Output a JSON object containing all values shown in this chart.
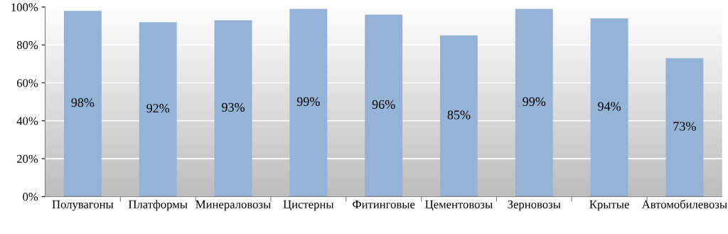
{
  "chart_data": {
    "type": "bar",
    "categories": [
      "Полувагоны",
      "Платформы",
      "Минераловозы",
      "Цистерны",
      "Фитинговые",
      "Цементовозы",
      "Зерновозы",
      "Крытые",
      "Автомобилевозы"
    ],
    "values": [
      98,
      92,
      93,
      99,
      96,
      85,
      99,
      94,
      73
    ],
    "value_labels": [
      "98%",
      "92%",
      "93%",
      "99%",
      "96%",
      "85%",
      "99%",
      "94%",
      "73%"
    ],
    "color": "#95b3d7",
    "ylim": [
      0,
      100
    ],
    "yticks": [
      {
        "value": 0,
        "label": "0%"
      },
      {
        "value": 20,
        "label": "20%"
      },
      {
        "value": 40,
        "label": "40%"
      },
      {
        "value": 60,
        "label": "60%"
      },
      {
        "value": 80,
        "label": "80%"
      },
      {
        "value": 100,
        "label": "100%"
      }
    ],
    "grid": "y"
  }
}
